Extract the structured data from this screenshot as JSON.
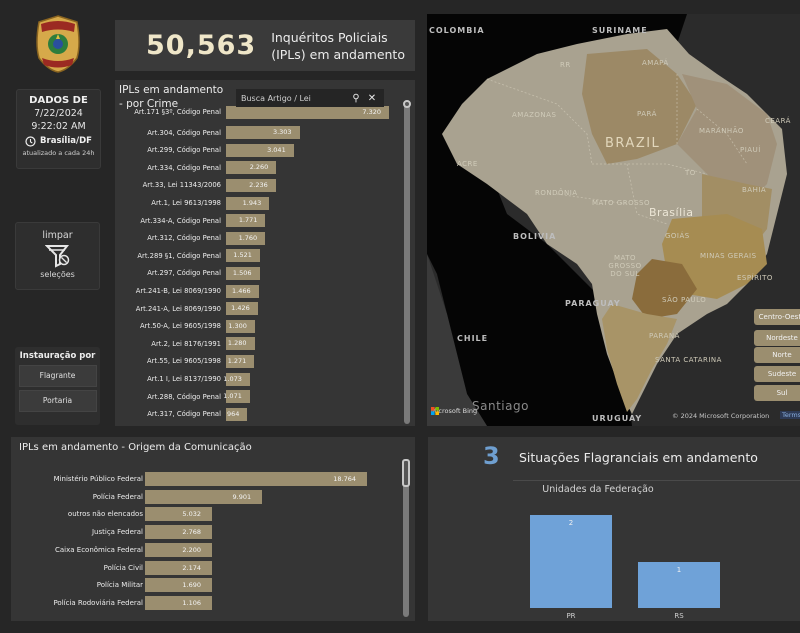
{
  "logo": {
    "label": "Polícia Federal badge",
    "text_top": "POLÍCIA",
    "text_bottom": "FEDERAL"
  },
  "dados": {
    "title": "DADOS DE",
    "date": "7/22/2024",
    "time": "9:22:02 AM",
    "location": "Brasília/DF",
    "note": "atualizado a cada 24h"
  },
  "limpar": {
    "top": "limpar",
    "bottom": "seleções"
  },
  "instauracao": {
    "title": "Instauração por",
    "options": [
      "Flagrante",
      "Portaria"
    ]
  },
  "kpi": {
    "value": "50,563",
    "label_line1": "Inquéritos Policiais",
    "label_line2": "(IPLs) em andamento"
  },
  "crime_panel": {
    "title_line1": "IPLs em andamento",
    "title_line2": "- por Crime",
    "search_placeholder": "Busca Artigo / Lei",
    "rows": [
      {
        "label": "Art.171 §3º, Código Penal",
        "value": 7320,
        "display": "7.320"
      },
      {
        "label": "Art.304, Código Penal",
        "value": 3303,
        "display": "3.303"
      },
      {
        "label": "Art.299, Código Penal",
        "value": 3041,
        "display": "3.041"
      },
      {
        "label": "Art.334, Código Penal",
        "value": 2260,
        "display": "2.260"
      },
      {
        "label": "Art.33, Lei 11343/2006",
        "value": 2236,
        "display": "2.236"
      },
      {
        "label": "Art.1, Lei 9613/1998",
        "value": 1943,
        "display": "1.943"
      },
      {
        "label": "Art.334-A, Código Penal",
        "value": 1771,
        "display": "1.771"
      },
      {
        "label": "Art.312, Código Penal",
        "value": 1760,
        "display": "1.760"
      },
      {
        "label": "Art.289 §1, Código Penal",
        "value": 1521,
        "display": "1.521"
      },
      {
        "label": "Art.297, Código Penal",
        "value": 1506,
        "display": "1.506"
      },
      {
        "label": "Art.241-B, Lei 8069/1990",
        "value": 1466,
        "display": "1.466"
      },
      {
        "label": "Art.241-A, Lei 8069/1990",
        "value": 1426,
        "display": "1.426"
      },
      {
        "label": "Art.50-A, Lei 9605/1998",
        "value": 1300,
        "display": "1.300"
      },
      {
        "label": "Art.2, Lei 8176/1991",
        "value": 1280,
        "display": "1.280"
      },
      {
        "label": "Art.55, Lei 9605/1998",
        "value": 1271,
        "display": "1.271"
      },
      {
        "label": "Art.1 I, Lei 8137/1990",
        "value": 1073,
        "display": "1.073"
      },
      {
        "label": "Art.288, Código Penal",
        "value": 1071,
        "display": "1.071"
      },
      {
        "label": "Art.317, Código Penal",
        "value": 964,
        "display": "964"
      }
    ]
  },
  "origem_panel": {
    "title": "IPLs em andamento - Origem da Comunicação",
    "rows": [
      {
        "label": "Ministério Público Federal",
        "value": 18764,
        "display": "18.764"
      },
      {
        "label": "Polícia Federal",
        "value": 9901,
        "display": "9.901"
      },
      {
        "label": "outros não elencados",
        "value": 5032,
        "display": "5.032"
      },
      {
        "label": "Justiça Federal",
        "value": 2768,
        "display": "2.768"
      },
      {
        "label": "Caixa Econômica Federal",
        "value": 2200,
        "display": "2.200"
      },
      {
        "label": "Polícia Civil",
        "value": 2174,
        "display": "2.174"
      },
      {
        "label": "Polícia Militar",
        "value": 1690,
        "display": "1.690"
      },
      {
        "label": "Polícia Rodoviária Federal",
        "value": 1106,
        "display": "1.106"
      }
    ]
  },
  "map": {
    "countries": [
      "COLOMBIA",
      "SURINAME",
      "BOLIVIA",
      "PARAGUAY",
      "CHILE",
      "URUGUAY"
    ],
    "country_main": "BRAZIL",
    "cities": [
      "Brasília",
      "Santiago"
    ],
    "states": [
      "AMAZONAS",
      "PARÁ",
      "AMAPÁ",
      "ACRE",
      "RONDÔNIA",
      "MATO GROSSO",
      "MARANHÃO",
      "CEARÁ",
      "PIAUÍ",
      "BAHIA",
      "GOIÁS",
      "MATO GROSSO DO SUL",
      "MINAS GERAIS",
      "SÃO PAULO",
      "PARANÁ",
      "SANTA CATARINA",
      "ESPÍRITO",
      "TO",
      "RR"
    ],
    "regions": [
      "Centro-Oeste",
      "Nordeste",
      "Norte",
      "Sudeste",
      "Sul"
    ],
    "attribution": "Microsoft Bing",
    "copyright": "© 2024 Microsoft Corporation",
    "terms": "Terms",
    "colors": {
      "land": "#a9a290",
      "highlight": "#9c8966",
      "sudeste": "#a28a52",
      "sp": "#8a6c3c",
      "sul": "#a89467",
      "ocean": "#2b2b2b",
      "neighbors": "#050505"
    }
  },
  "flagrante": {
    "count": "3",
    "title": "Situações Flagranciais em andamento",
    "chart_data": {
      "type": "bar",
      "title": "Unidades da Federação",
      "categories": [
        "PR",
        "RS"
      ],
      "values": [
        2,
        1
      ],
      "ylim": [
        0,
        2
      ],
      "color": "#6fa2d8"
    }
  }
}
